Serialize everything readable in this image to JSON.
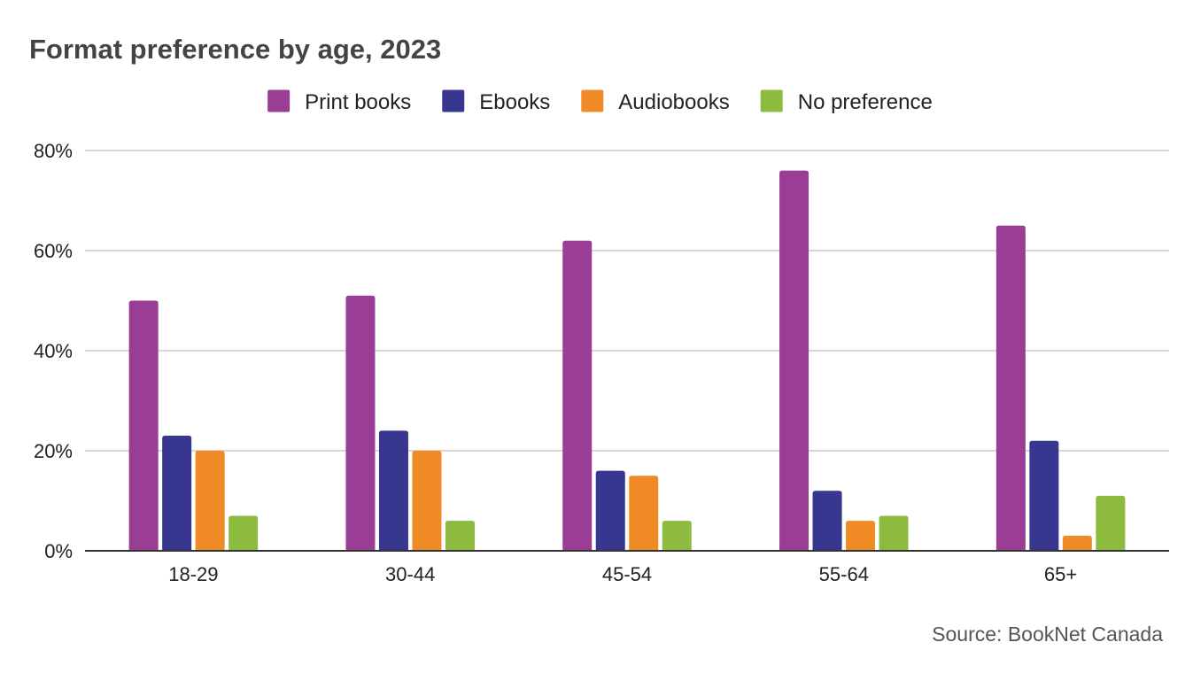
{
  "chart_data": {
    "type": "bar",
    "title": "Format preference by age, 2023",
    "source": "Source: BookNet Canada",
    "categories": [
      "18-29",
      "30-44",
      "45-54",
      "55-64",
      "65+"
    ],
    "series": [
      {
        "name": "Print books",
        "color": "#993d95",
        "values": [
          50,
          51,
          62,
          76,
          65
        ]
      },
      {
        "name": "Ebooks",
        "color": "#37378f",
        "values": [
          23,
          24,
          16,
          12,
          22
        ]
      },
      {
        "name": "Audiobooks",
        "color": "#f08a24",
        "values": [
          20,
          20,
          15,
          6,
          3
        ]
      },
      {
        "name": "No preference",
        "color": "#8dbb3f",
        "values": [
          7,
          6,
          6,
          7,
          11
        ]
      }
    ],
    "ylim": [
      0,
      80
    ],
    "yticks": [
      0,
      20,
      40,
      60,
      80
    ],
    "ytick_labels": [
      "0%",
      "20%",
      "40%",
      "60%",
      "80%"
    ],
    "grid": true,
    "legend_position": "top",
    "xlabel": "",
    "ylabel": ""
  }
}
